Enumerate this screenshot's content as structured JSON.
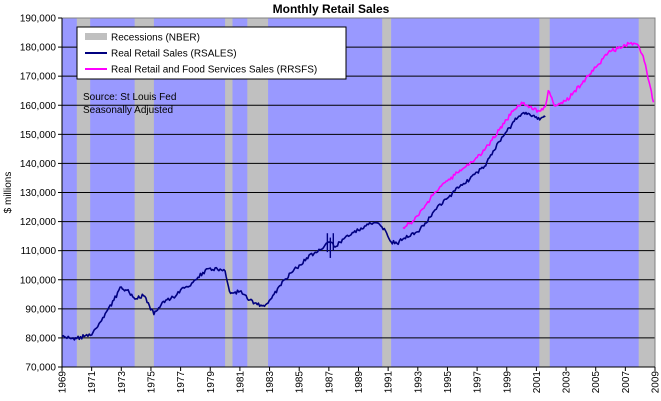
{
  "chart_data": {
    "type": "line",
    "title": "Monthly Retail Sales",
    "ylabel": "$ millions",
    "xlabel": "",
    "ylim": [
      70000,
      190000
    ],
    "xlim": [
      1969,
      2009
    ],
    "y_ticks": [
      70000,
      80000,
      90000,
      100000,
      110000,
      120000,
      130000,
      140000,
      150000,
      160000,
      170000,
      180000,
      190000
    ],
    "y_tick_labels": [
      "70,000",
      "80,000",
      "90,000",
      "100,000",
      "110,000",
      "120,000",
      "130,000",
      "140,000",
      "150,000",
      "160,000",
      "170,000",
      "180,000",
      "190,000"
    ],
    "x_ticks": [
      1969,
      1971,
      1973,
      1975,
      1977,
      1979,
      1981,
      1983,
      1985,
      1987,
      1989,
      1991,
      1993,
      1995,
      1997,
      1999,
      2001,
      2003,
      2005,
      2007,
      2009
    ],
    "x_tick_labels": [
      "1969",
      "1971",
      "1973",
      "1975",
      "1977",
      "1979",
      "1981",
      "1983",
      "1985",
      "1987",
      "1989",
      "1991",
      "1993",
      "1995",
      "1997",
      "1999",
      "2001",
      "2003",
      "2005",
      "2007",
      "2009"
    ],
    "grid": "horizontal",
    "plot_background": "#9999ff",
    "legend_position": "top-left",
    "legend": [
      {
        "label": "Recessions (NBER)",
        "color": "#c0c0c0",
        "kind": "band"
      },
      {
        "label": "Real Retail Sales (RSALES)",
        "color": "#000080",
        "kind": "line"
      },
      {
        "label": "Real Retail and Food Services Sales (RRSFS)",
        "color": "#ff00ff",
        "kind": "line"
      }
    ],
    "annotations": [
      "Source: St Louis Fed",
      "Seasonally Adjusted"
    ],
    "recessions": [
      {
        "start": 1970.0,
        "end": 1970.9
      },
      {
        "start": 1973.9,
        "end": 1975.2
      },
      {
        "start": 1980.0,
        "end": 1980.5
      },
      {
        "start": 1981.5,
        "end": 1982.9
      },
      {
        "start": 1990.6,
        "end": 1991.2
      },
      {
        "start": 2001.2,
        "end": 2001.9
      },
      {
        "start": 2007.9,
        "end": 2009.0
      }
    ],
    "series": [
      {
        "name": "Real Retail Sales (RSALES)",
        "color": "#000080",
        "x": [
          1969.0,
          1969.5,
          1970.0,
          1970.5,
          1971.0,
          1971.5,
          1972.0,
          1972.5,
          1973.0,
          1973.3,
          1973.7,
          1974.0,
          1974.5,
          1974.9,
          1975.2,
          1975.6,
          1976.0,
          1976.5,
          1977.0,
          1977.5,
          1978.0,
          1978.5,
          1979.0,
          1979.5,
          1980.0,
          1980.3,
          1980.6,
          1981.0,
          1981.5,
          1982.0,
          1982.5,
          1982.9,
          1983.3,
          1983.7,
          1984.0,
          1984.5,
          1985.0,
          1985.5,
          1986.0,
          1986.5,
          1987.0,
          1987.5,
          1988.0,
          1988.5,
          1989.0,
          1989.5,
          1990.0,
          1990.5,
          1990.9,
          1991.2,
          1991.6,
          1992.0,
          1992.5,
          1993.0,
          1993.5,
          1994.0,
          1994.5,
          1995.0,
          1995.5,
          1996.0,
          1996.5,
          1997.0,
          1997.5,
          1998.0,
          1998.5,
          1999.0,
          1999.5,
          2000.0,
          2000.3,
          2000.6,
          2001.0,
          2001.3,
          2001.6
        ],
        "y": [
          80500,
          80000,
          79800,
          80500,
          81000,
          85000,
          89000,
          93000,
          97500,
          96500,
          95000,
          93500,
          94500,
          91000,
          88000,
          90500,
          93000,
          94000,
          96500,
          97500,
          100000,
          102500,
          104000,
          103500,
          103000,
          96000,
          95500,
          96000,
          93500,
          92000,
          91000,
          92000,
          95000,
          98000,
          100000,
          102500,
          105000,
          107500,
          109000,
          110500,
          113000,
          111500,
          114000,
          115500,
          117000,
          118500,
          119500,
          118500,
          116000,
          113000,
          112500,
          114000,
          115000,
          116500,
          119500,
          123000,
          126000,
          128000,
          130500,
          132500,
          134500,
          137000,
          139000,
          143000,
          147500,
          151000,
          154500,
          157000,
          157500,
          156500,
          156000,
          155500,
          156000
        ]
      },
      {
        "name": "Real Retail and Food Services Sales (RRSFS)",
        "color": "#ff00ff",
        "x": [
          1992.0,
          1992.5,
          1993.0,
          1993.5,
          1994.0,
          1994.5,
          1995.0,
          1995.5,
          1996.0,
          1996.5,
          1997.0,
          1997.5,
          1998.0,
          1998.5,
          1999.0,
          1999.5,
          2000.0,
          2000.4,
          2000.8,
          2001.2,
          2001.6,
          2001.8,
          2002.2,
          2002.6,
          2003.0,
          2003.5,
          2004.0,
          2004.5,
          2005.0,
          2005.5,
          2006.0,
          2006.5,
          2007.0,
          2007.4,
          2007.8,
          2008.2,
          2008.6,
          2008.9
        ],
        "y": [
          118000,
          119500,
          122000,
          125500,
          129000,
          132000,
          134000,
          136000,
          138000,
          140000,
          142000,
          144500,
          148000,
          151500,
          155000,
          158500,
          161000,
          160000,
          158500,
          158000,
          159500,
          165000,
          160000,
          160500,
          161500,
          164500,
          167000,
          170000,
          173000,
          176000,
          178500,
          179500,
          180500,
          181500,
          181000,
          177000,
          168000,
          161000
        ]
      }
    ]
  }
}
